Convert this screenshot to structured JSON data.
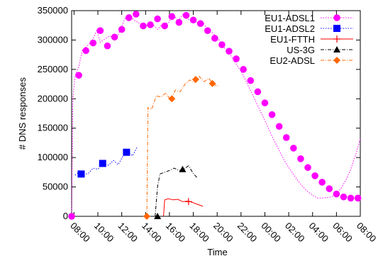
{
  "chart_data": {
    "type": "line",
    "xlabel": "Time",
    "ylabel": "# DNS responses",
    "xlim": [
      7.8,
      32
    ],
    "ylim": [
      0,
      350000
    ],
    "x_ticks": [
      {
        "value": 8,
        "label": "08:00"
      },
      {
        "value": 10,
        "label": "10:00"
      },
      {
        "value": 12,
        "label": "12:00"
      },
      {
        "value": 14,
        "label": "14:00"
      },
      {
        "value": 16,
        "label": "16:00"
      },
      {
        "value": 18,
        "label": "18:00"
      },
      {
        "value": 20,
        "label": "20:00"
      },
      {
        "value": 22,
        "label": "22:00"
      },
      {
        "value": 24,
        "label": "00:00"
      },
      {
        "value": 26,
        "label": "02:00"
      },
      {
        "value": 28,
        "label": "04:00"
      },
      {
        "value": 30,
        "label": "06:00"
      },
      {
        "value": 32,
        "label": "08:00"
      }
    ],
    "y_ticks": [
      {
        "value": 0,
        "label": "0"
      },
      {
        "value": 50000,
        "label": "50000"
      },
      {
        "value": 100000,
        "label": "100000"
      },
      {
        "value": 150000,
        "label": "150000"
      },
      {
        "value": 200000,
        "label": "200000"
      },
      {
        "value": 250000,
        "label": "250000"
      },
      {
        "value": 300000,
        "label": "300000"
      },
      {
        "value": 350000,
        "label": "350000"
      }
    ],
    "legend_position": "top-right",
    "grid": false,
    "series": [
      {
        "name": "EU1-ADSL1",
        "color": "#ff00ff",
        "line_style": "dotted",
        "marker": "circle",
        "line": [
          [
            7.8,
            0
          ],
          [
            7.9,
            200000
          ],
          [
            8.1,
            240000
          ],
          [
            8.4,
            255000
          ],
          [
            8.7,
            282000
          ],
          [
            9.1,
            290000
          ],
          [
            9.5,
            298000
          ],
          [
            9.9,
            316000
          ],
          [
            10.2,
            296000
          ],
          [
            10.6,
            302000
          ],
          [
            11.0,
            307000
          ],
          [
            11.5,
            300000
          ],
          [
            11.9,
            318000
          ],
          [
            12.3,
            338000
          ],
          [
            12.7,
            344000
          ],
          [
            13.0,
            334000
          ],
          [
            13.4,
            330000
          ],
          [
            13.8,
            322000
          ],
          [
            14.2,
            325000
          ],
          [
            14.6,
            326000
          ],
          [
            15.0,
            318000
          ],
          [
            15.5,
            329000
          ],
          [
            15.9,
            328000
          ],
          [
            16.3,
            345000
          ],
          [
            16.7,
            332000
          ],
          [
            17.1,
            343000
          ],
          [
            17.5,
            335000
          ],
          [
            17.9,
            336000
          ],
          [
            18.3,
            330000
          ],
          [
            18.8,
            330000
          ],
          [
            19.2,
            318000
          ],
          [
            19.6,
            312000
          ],
          [
            20.0,
            305000
          ],
          [
            20.5,
            289000
          ],
          [
            21.0,
            278000
          ],
          [
            21.5,
            262000
          ],
          [
            22.0,
            247000
          ],
          [
            22.4,
            231000
          ],
          [
            22.8,
            214000
          ],
          [
            23.2,
            197000
          ],
          [
            23.6,
            180000
          ],
          [
            24.0,
            163000
          ],
          [
            24.4,
            145000
          ],
          [
            24.8,
            128000
          ],
          [
            25.2,
            112000
          ],
          [
            25.6,
            96000
          ],
          [
            26.0,
            83000
          ],
          [
            26.4,
            71000
          ],
          [
            26.8,
            60000
          ],
          [
            27.2,
            50000
          ],
          [
            27.6,
            42000
          ],
          [
            28.0,
            36000
          ],
          [
            28.4,
            31000
          ],
          [
            28.8,
            31000
          ],
          [
            29.2,
            32000
          ],
          [
            29.6,
            33000
          ],
          [
            30.0,
            39000
          ],
          [
            30.4,
            48000
          ],
          [
            30.8,
            62000
          ],
          [
            31.2,
            80000
          ],
          [
            31.6,
            104000
          ],
          [
            32.0,
            132000
          ]
        ],
        "markers": [
          [
            7.8,
            0
          ],
          [
            8.4,
            240000
          ],
          [
            9.0,
            282000
          ],
          [
            9.6,
            295000
          ],
          [
            10.2,
            316000
          ],
          [
            10.8,
            290000
          ],
          [
            11.4,
            305000
          ],
          [
            12.0,
            318000
          ],
          [
            12.6,
            338000
          ],
          [
            13.2,
            344000
          ],
          [
            13.8,
            324000
          ],
          [
            14.4,
            326000
          ],
          [
            15.0,
            336000
          ],
          [
            15.6,
            324000
          ],
          [
            16.2,
            340000
          ],
          [
            16.8,
            330000
          ],
          [
            17.4,
            342000
          ],
          [
            18.0,
            334000
          ],
          [
            18.6,
            328000
          ],
          [
            19.2,
            316000
          ],
          [
            19.8,
            303000
          ],
          [
            20.4,
            292000
          ],
          [
            21.0,
            281000
          ],
          [
            21.6,
            268000
          ],
          [
            22.2,
            250000
          ],
          [
            22.8,
            231000
          ],
          [
            23.4,
            212000
          ],
          [
            24.0,
            193000
          ],
          [
            24.6,
            173000
          ],
          [
            25.2,
            153000
          ],
          [
            25.8,
            134000
          ],
          [
            26.4,
            116000
          ],
          [
            27.0,
            98000
          ],
          [
            27.6,
            83000
          ],
          [
            28.2,
            69000
          ],
          [
            28.8,
            58000
          ],
          [
            29.4,
            47000
          ],
          [
            30.0,
            38000
          ],
          [
            30.6,
            33000
          ],
          [
            31.2,
            31000
          ],
          [
            31.8,
            31000
          ]
        ]
      },
      {
        "name": "EU1-ADSL2",
        "color": "#0000ff",
        "line_style": "dotted",
        "marker": "square",
        "line": [
          [
            8.1,
            70000
          ],
          [
            8.4,
            75000
          ],
          [
            8.8,
            71000
          ],
          [
            9.2,
            73000
          ],
          [
            9.6,
            82000
          ],
          [
            10.0,
            80000
          ],
          [
            10.4,
            90000
          ],
          [
            10.9,
            87000
          ],
          [
            11.3,
            95000
          ],
          [
            11.7,
            88000
          ],
          [
            12.1,
            102000
          ],
          [
            12.5,
            110000
          ],
          [
            12.9,
            103000
          ],
          [
            13.3,
            118000
          ]
        ],
        "markers": [
          [
            8.6,
            72000
          ],
          [
            10.4,
            90000
          ],
          [
            12.4,
            109000
          ]
        ]
      },
      {
        "name": "EU1-FTTH",
        "color": "#ff0000",
        "line_style": "solid",
        "marker": "plus",
        "line": [
          [
            15.5,
            0
          ],
          [
            15.6,
            28000
          ],
          [
            15.9,
            30000
          ],
          [
            16.3,
            28000
          ],
          [
            16.7,
            29000
          ],
          [
            17.1,
            25000
          ],
          [
            17.6,
            26000
          ],
          [
            18.0,
            23000
          ],
          [
            18.4,
            20000
          ],
          [
            18.8,
            17000
          ]
        ],
        "markers": [
          [
            17.6,
            25000
          ]
        ]
      },
      {
        "name": "US-3G",
        "color": "#000000",
        "line_style": "dashdot",
        "marker": "triangle",
        "line": [
          [
            14.8,
            0
          ],
          [
            15.0,
            50000
          ],
          [
            15.2,
            72000
          ],
          [
            15.6,
            75000
          ],
          [
            16.0,
            78000
          ],
          [
            16.4,
            82000
          ],
          [
            16.8,
            78000
          ],
          [
            17.2,
            80000
          ],
          [
            17.6,
            86000
          ],
          [
            18.0,
            73000
          ],
          [
            18.3,
            66000
          ]
        ],
        "markers": [
          [
            15.0,
            0
          ],
          [
            17.1,
            80000
          ]
        ]
      },
      {
        "name": "EU2-ADSL",
        "color": "#ff6600",
        "line_style": "dashdot",
        "marker": "diamond",
        "line": [
          [
            14.1,
            0
          ],
          [
            14.2,
            185000
          ],
          [
            14.5,
            182000
          ],
          [
            14.9,
            205000
          ],
          [
            15.3,
            203000
          ],
          [
            15.7,
            210000
          ],
          [
            16.1,
            197000
          ],
          [
            16.5,
            215000
          ],
          [
            16.9,
            212000
          ],
          [
            17.3,
            225000
          ],
          [
            17.7,
            232000
          ],
          [
            18.1,
            228000
          ],
          [
            18.5,
            238000
          ],
          [
            18.9,
            229000
          ],
          [
            19.3,
            235000
          ],
          [
            19.7,
            224000
          ],
          [
            20.1,
            222000
          ]
        ],
        "markers": [
          [
            14.1,
            0
          ],
          [
            16.2,
            200000
          ],
          [
            18.2,
            233000
          ],
          [
            19.6,
            226000
          ]
        ]
      }
    ]
  }
}
